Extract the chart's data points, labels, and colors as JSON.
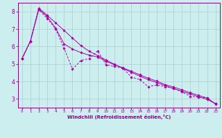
{
  "xlabel": "Windchill (Refroidissement éolien,°C)",
  "x_values": [
    0,
    1,
    2,
    3,
    4,
    5,
    6,
    7,
    8,
    9,
    10,
    11,
    12,
    13,
    14,
    15,
    16,
    17,
    18,
    19,
    20,
    21,
    22,
    23
  ],
  "line1_y": [
    5.3,
    6.3,
    8.1,
    7.6,
    7.0,
    5.9,
    4.7,
    5.2,
    5.3,
    5.75,
    4.95,
    4.85,
    4.75,
    4.25,
    4.1,
    3.7,
    3.8,
    3.7,
    3.6,
    3.4,
    3.15,
    3.1,
    3.05,
    2.7
  ],
  "line2_y": [
    5.3,
    6.3,
    8.15,
    7.7,
    7.05,
    6.15,
    5.85,
    5.65,
    5.5,
    5.4,
    5.15,
    4.95,
    4.78,
    4.58,
    4.38,
    4.18,
    4.02,
    3.82,
    3.68,
    3.52,
    3.35,
    3.2,
    3.05,
    2.72
  ],
  "line3_y": [
    5.3,
    6.3,
    8.2,
    7.78,
    7.35,
    6.92,
    6.48,
    6.05,
    5.72,
    5.48,
    5.22,
    4.98,
    4.74,
    4.52,
    4.3,
    4.1,
    3.94,
    3.76,
    3.6,
    3.44,
    3.28,
    3.12,
    2.97,
    2.72
  ],
  "line_color": "#aa00aa",
  "bg_color": "#cceeee",
  "grid_color": "#aacccc",
  "axis_color": "#880088",
  "text_color": "#880088",
  "ylim": [
    2.5,
    8.5
  ],
  "xlim": [
    -0.5,
    23.5
  ],
  "yticks": [
    3,
    4,
    5,
    6,
    7,
    8
  ],
  "xticks": [
    0,
    1,
    2,
    3,
    4,
    5,
    6,
    7,
    8,
    9,
    10,
    11,
    12,
    13,
    14,
    15,
    16,
    17,
    18,
    19,
    20,
    21,
    22,
    23
  ]
}
